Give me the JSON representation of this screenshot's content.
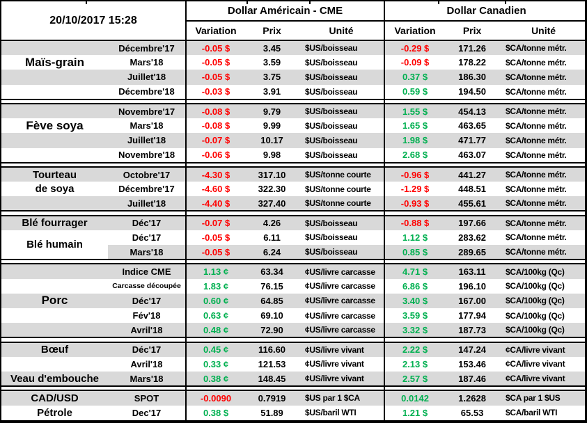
{
  "timestamp": "20/10/2017 15:28",
  "header": {
    "us": {
      "title": "Dollar Américain - CME",
      "cols": [
        "Variation",
        "Prix",
        "Unité"
      ]
    },
    "ca": {
      "title": "Dollar Canadien",
      "cols": [
        "Variation",
        "Prix",
        "Unité"
      ]
    }
  },
  "colors": {
    "negative_variation": "#FF0000",
    "positive_variation": "#00B050",
    "row_stripe_gray": "#D9D9D9",
    "border_black": "#000000"
  },
  "row_fields": [
    "contract",
    "us_variation",
    "us_prix",
    "us_unité",
    "ca_variation",
    "ca_prix",
    "ca_unité"
  ],
  "sections": [
    {
      "commodity_labels": [
        {
          "row": 1,
          "text": "Maïs-grain",
          "big": true
        }
      ],
      "rows": [
        [
          "Décembre'17",
          "-0.05 $",
          "3.45",
          "$US/boisseau",
          "-0.29 $",
          "171.26",
          "$CA/tonne métr."
        ],
        [
          "Mars'18",
          "-0.05 $",
          "3.59",
          "$US/boisseau",
          "-0.09 $",
          "178.22",
          "$CA/tonne métr."
        ],
        [
          "Juillet'18",
          "-0.05 $",
          "3.75",
          "$US/boisseau",
          "0.37 $",
          "186.30",
          "$CA/tonne métr."
        ],
        [
          "Décembre'18",
          "-0.03 $",
          "3.91",
          "$US/boisseau",
          "0.59 $",
          "194.50",
          "$CA/tonne métr."
        ]
      ]
    },
    {
      "commodity_labels": [
        {
          "row": 1,
          "text": "Fève soya",
          "big": true
        }
      ],
      "rows": [
        [
          "Novembre'17",
          "-0.08 $",
          "9.79",
          "$US/boisseau",
          "1.55 $",
          "454.13",
          "$CA/tonne métr."
        ],
        [
          "Mars'18",
          "-0.08 $",
          "9.99",
          "$US/boisseau",
          "1.65 $",
          "463.65",
          "$CA/tonne métr."
        ],
        [
          "Juillet'18",
          "-0.07 $",
          "10.17",
          "$US/boisseau",
          "1.98 $",
          "471.77",
          "$CA/tonne métr."
        ],
        [
          "Novembre'18",
          "-0.06 $",
          "9.98",
          "$US/boisseau",
          "2.68 $",
          "463.07",
          "$CA/tonne métr."
        ]
      ]
    },
    {
      "commodity_labels": [
        {
          "row": 0,
          "text": "Tourteau"
        },
        {
          "row": 1,
          "text": "de soya"
        }
      ],
      "rows": [
        [
          "Octobre'17",
          "-4.30 $",
          "317.10",
          "$US/tonne courte",
          "-0.96 $",
          "441.27",
          "$CA/tonne métr."
        ],
        [
          "Décembre'17",
          "-4.60 $",
          "322.30",
          "$US/tonne courte",
          "-1.29 $",
          "448.51",
          "$CA/tonne métr."
        ],
        [
          "Juillet'18",
          "-4.40 $",
          "327.40",
          "$US/tonne courte",
          "-0.93 $",
          "455.61",
          "$CA/tonne métr."
        ]
      ]
    },
    {
      "commodity_labels": [
        {
          "row": 0,
          "text": "Blé fourrager"
        },
        {
          "row": 1,
          "text": "Blé humain",
          "span": 2
        }
      ],
      "rows": [
        [
          "Déc'17",
          "-0.07 $",
          "4.26",
          "$US/boisseau",
          "-0.88 $",
          "197.66",
          "$CA/tonne métr."
        ],
        [
          "Déc'17",
          "-0.05 $",
          "6.11",
          "$US/boisseau",
          "1.12 $",
          "283.62",
          "$CA/tonne métr."
        ],
        [
          "Mars'18",
          "-0.05 $",
          "6.24",
          "$US/boisseau",
          "0.85 $",
          "289.65",
          "$CA/tonne métr."
        ]
      ]
    },
    {
      "commodity_labels": [
        {
          "row": 2,
          "text": "Porc",
          "big": true
        }
      ],
      "small_contract_rows": [
        1
      ],
      "rows": [
        [
          "Indice CME",
          "1.13 ¢",
          "63.34",
          "¢US/livre carcasse",
          "4.71 $",
          "163.11",
          "$CA/100kg (Qc)"
        ],
        [
          "Carcasse découpée",
          "1.83 ¢",
          "76.15",
          "¢US/livre carcasse",
          "6.86 $",
          "196.10",
          "$CA/100kg (Qc)"
        ],
        [
          "Déc'17",
          "0.60 ¢",
          "64.85",
          "¢US/livre carcasse",
          "3.40 $",
          "167.00",
          "$CA/100kg (Qc)"
        ],
        [
          "Fév'18",
          "0.63 ¢",
          "69.10",
          "¢US/livre carcasse",
          "3.59 $",
          "177.94",
          "$CA/100kg (Qc)"
        ],
        [
          "Avril'18",
          "0.48 ¢",
          "72.90",
          "¢US/livre carcasse",
          "3.32 $",
          "187.73",
          "$CA/100kg (Qc)"
        ]
      ]
    },
    {
      "commodity_labels": [
        {
          "row": 0,
          "text": "Bœuf"
        },
        {
          "row": 2,
          "text": "Veau d'embouche"
        }
      ],
      "rows": [
        [
          "Déc'17",
          "0.45 ¢",
          "116.60",
          "¢US/livre vivant",
          "2.22 $",
          "147.24",
          "¢CA/livre vivant"
        ],
        [
          "Avril'18",
          "0.33 ¢",
          "121.53",
          "¢US/livre vivant",
          "2.13 $",
          "153.46",
          "¢CA/livre vivant"
        ],
        [
          "Mars'18",
          "0.38 ¢",
          "148.45",
          "¢US/livre vivant",
          "2.57 $",
          "187.46",
          "¢CA/livre vivant"
        ]
      ]
    },
    {
      "commodity_labels": [
        {
          "row": 0,
          "text": "CAD/USD"
        },
        {
          "row": 1,
          "text": "Pétrole"
        }
      ],
      "rows": [
        [
          "SPOT",
          "-0.0090",
          "0.7919",
          "$US par 1 $CA",
          "0.0142",
          "1.2628",
          "$CA par 1 $US"
        ],
        [
          "Dec'17",
          "0.38 $",
          "51.89",
          "$US/baril WTI",
          "1.21 $",
          "65.53",
          "$CA/baril WTI"
        ]
      ]
    }
  ]
}
